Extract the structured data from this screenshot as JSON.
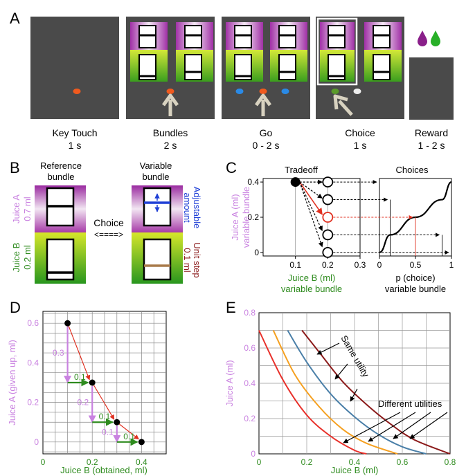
{
  "panels": {
    "A": {
      "letter": "A",
      "frames": [
        {
          "name": "Key Touch",
          "duration": "1 s"
        },
        {
          "name": "Bundles",
          "duration": "2 s"
        },
        {
          "name": "Go",
          "duration": "0 - 2 s"
        },
        {
          "name": "Choice",
          "duration": "1 s"
        },
        {
          "name": "Reward",
          "duration": "1 - 2 s"
        }
      ]
    },
    "B": {
      "letter": "B",
      "reference_title": [
        "Reference",
        "bundle"
      ],
      "variable_title": [
        "Variable",
        "bundle"
      ],
      "choice_label": "Choice",
      "arrow_label": "<====>",
      "juice_a_label": "Juice A",
      "juice_a_amount": "0.7 ml",
      "juice_b_label": "Juice B",
      "juice_b_amount": "0.2 ml",
      "adjustable": [
        "Adjustable",
        "amount"
      ],
      "unit_step": [
        "Unit step",
        "0.1 ml"
      ]
    },
    "C": {
      "letter": "C",
      "tradeoff_title": "Tradeoff",
      "choices_title": "Choices",
      "ylabel": [
        "Juice A (ml)",
        "variable bundle"
      ],
      "xlabel_left": [
        "Juice B (ml)",
        "variable bundle"
      ],
      "xlabel_right": [
        "p (choice)",
        "variable bundle"
      ],
      "left_xticks": [
        "0.1",
        "0.2",
        "0.3"
      ],
      "yticks": [
        "0",
        "0.2",
        "0.4"
      ],
      "right_xticks": [
        "0",
        "0.5",
        "1"
      ]
    },
    "D": {
      "letter": "D",
      "ylabel": "Juice A (given up, ml)",
      "xlabel": "Juice B (obtained, ml)",
      "xticks": [
        "0",
        "0.2",
        "0.4"
      ],
      "yticks": [
        "0",
        "0.2",
        "0.4",
        "0.6"
      ],
      "step_a_labels": [
        "0.3",
        "0.2",
        "0.1"
      ],
      "step_b_labels": [
        "0.1",
        "0.1",
        "0.1"
      ]
    },
    "E": {
      "letter": "E",
      "ylabel": "Juice A (ml)",
      "xlabel": "Juice B (ml)",
      "xticks": [
        "0",
        "0.2",
        "0.4",
        "0.6",
        "0.8"
      ],
      "yticks": [
        "0",
        "0.2",
        "0.4",
        "0.6",
        "0.8"
      ],
      "same_utility": "Same utility",
      "different_utilities": "Different utilities"
    }
  },
  "colors": {
    "screen": "#4a4a4a",
    "juice_a": "#a63aa8",
    "juice_b": "#6ab21e",
    "label_purple": "#c982e0",
    "label_green": "#2e8b1e",
    "arrow_red": "#e03020",
    "curve_red": "#e8302a",
    "curve_orange": "#f5a020",
    "curve_blue": "#4a7fa8",
    "curve_dkred": "#8b1a1a"
  },
  "chart_data": [
    {
      "panel": "C-left",
      "type": "scatter",
      "title": "Tradeoff",
      "xlabel": "Juice B (ml) variable bundle",
      "ylabel": "Juice A (ml) variable bundle",
      "xlim": [
        0,
        0.3
      ],
      "ylim": [
        -0.02,
        0.42
      ],
      "reference_point": {
        "x": 0.1,
        "y": 0.4
      },
      "variable_points": [
        {
          "x": 0.2,
          "y": 0.4
        },
        {
          "x": 0.2,
          "y": 0.3
        },
        {
          "x": 0.2,
          "y": 0.2
        },
        {
          "x": 0.2,
          "y": 0.1
        },
        {
          "x": 0.2,
          "y": 0.0
        }
      ]
    },
    {
      "panel": "C-right",
      "type": "line",
      "title": "Choices",
      "xlabel": "p (choice) variable bundle",
      "xlim": [
        0,
        1
      ],
      "ylim": [
        -0.02,
        0.42
      ],
      "points": [
        {
          "x": 0.0,
          "y": 0.0
        },
        {
          "x": 0.15,
          "y": 0.1
        },
        {
          "x": 0.5,
          "y": 0.2
        },
        {
          "x": 0.87,
          "y": 0.3
        },
        {
          "x": 1.0,
          "y": 0.4
        }
      ]
    },
    {
      "panel": "D",
      "type": "line",
      "xlabel": "Juice B (obtained, ml)",
      "ylabel": "Juice A (given up, ml)",
      "xlim": [
        0,
        0.5
      ],
      "ylim": [
        -0.06,
        0.66
      ],
      "points": [
        {
          "x": 0.1,
          "y": 0.6
        },
        {
          "x": 0.2,
          "y": 0.3
        },
        {
          "x": 0.3,
          "y": 0.1
        },
        {
          "x": 0.4,
          "y": 0.0
        }
      ]
    },
    {
      "panel": "E",
      "type": "line",
      "xlabel": "Juice B (ml)",
      "ylabel": "Juice A (ml)",
      "xlim": [
        0,
        0.8
      ],
      "ylim": [
        0,
        0.8
      ],
      "series": [
        {
          "color": "#e8302a",
          "x": [
            0.0,
            0.1,
            0.2,
            0.3,
            0.4,
            0.45
          ],
          "y": [
            0.7,
            0.42,
            0.22,
            0.1,
            0.02,
            0.0
          ]
        },
        {
          "color": "#f5a020",
          "x": [
            0.06,
            0.15,
            0.25,
            0.35,
            0.45,
            0.58
          ],
          "y": [
            0.7,
            0.45,
            0.27,
            0.14,
            0.06,
            0.0
          ]
        },
        {
          "color": "#4a7fa8",
          "x": [
            0.12,
            0.2,
            0.3,
            0.4,
            0.5,
            0.6,
            0.7
          ],
          "y": [
            0.7,
            0.52,
            0.34,
            0.21,
            0.11,
            0.04,
            0.0
          ]
        },
        {
          "color": "#8b1a1a",
          "x": [
            0.18,
            0.25,
            0.35,
            0.45,
            0.55,
            0.65,
            0.8
          ],
          "y": [
            0.7,
            0.58,
            0.41,
            0.28,
            0.17,
            0.08,
            0.0
          ]
        }
      ]
    }
  ]
}
